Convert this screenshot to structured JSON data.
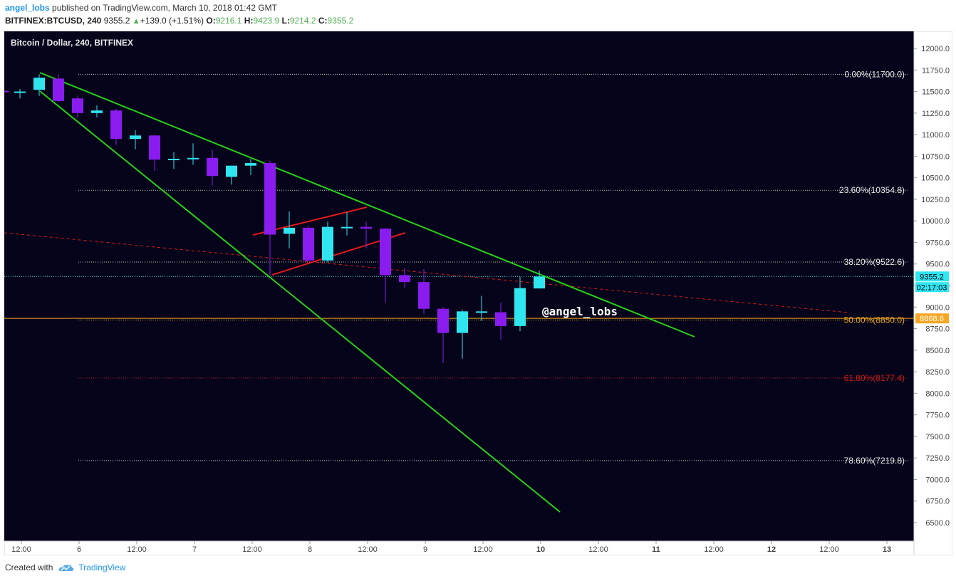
{
  "header": {
    "author": "angel_lobs",
    "published_text": " published on TradingView.com, March 10, 2018 01:42 GMT",
    "symbol": "BITFINEX:BTCUSD, 240",
    "last": "9355.2",
    "change": "+139.0 (+1.51%)",
    "o_label": "O:",
    "o_value": "9216.1",
    "h_label": "H:",
    "h_value": "9423.9",
    "l_label": "L:",
    "l_value": "9214.2",
    "c_label": "C:",
    "c_value": "9355.2"
  },
  "footer": {
    "created_with": "Created with",
    "brand": "TradingView"
  },
  "colors": {
    "background": "#05041a",
    "up": "#2fe6f0",
    "down": "#8a1cf0",
    "trendline": "#27d11a",
    "channel": "#e01a1a",
    "fib": "#c8c8c8",
    "fib50": "#e6a817",
    "fib618": "#cc1b1b",
    "price_tag": "#2fe6f0",
    "orange_tag": "#f5a623"
  },
  "chart_data": {
    "type": "candlestick",
    "title": "Bitcoin / Dollar, 240, BITFINEX",
    "ylim": [
      6250,
      12250
    ],
    "yticks": [
      "12000.0",
      "11750.0",
      "11500.0",
      "11250.0",
      "11000.0",
      "10750.0",
      "10500.0",
      "10250.0",
      "10000.0",
      "9750.0",
      "9500.0",
      "9250.0",
      "9000.0",
      "8750.0",
      "8500.0",
      "8250.0",
      "8000.0",
      "7750.0",
      "7500.0",
      "7250.0",
      "7000.0",
      "6750.0",
      "6500.0"
    ],
    "xticks": [
      "12:00",
      "6",
      "12:00",
      "7",
      "12:00",
      "8",
      "12:00",
      "9",
      "12:00",
      "10",
      "12:00",
      "11",
      "12:00",
      "12",
      "12:00",
      "13"
    ],
    "candles": [
      {
        "o": 11500,
        "h": 11530,
        "l": 11420,
        "c": 11500
      },
      {
        "o": 11520,
        "h": 11700,
        "l": 11450,
        "c": 11660
      },
      {
        "o": 11650,
        "h": 11700,
        "l": 11380,
        "c": 11390
      },
      {
        "o": 11420,
        "h": 11450,
        "l": 11200,
        "c": 11250
      },
      {
        "o": 11250,
        "h": 11340,
        "l": 11200,
        "c": 11280
      },
      {
        "o": 11280,
        "h": 11300,
        "l": 10880,
        "c": 10950
      },
      {
        "o": 10950,
        "h": 11050,
        "l": 10830,
        "c": 10990
      },
      {
        "o": 10990,
        "h": 11000,
        "l": 10580,
        "c": 10710
      },
      {
        "o": 10710,
        "h": 10800,
        "l": 10600,
        "c": 10720
      },
      {
        "o": 10720,
        "h": 10900,
        "l": 10650,
        "c": 10730
      },
      {
        "o": 10730,
        "h": 10820,
        "l": 10410,
        "c": 10520
      },
      {
        "o": 10510,
        "h": 10640,
        "l": 10420,
        "c": 10640
      },
      {
        "o": 10640,
        "h": 10720,
        "l": 10530,
        "c": 10670
      },
      {
        "o": 10670,
        "h": 10700,
        "l": 9370,
        "c": 9840
      },
      {
        "o": 9850,
        "h": 10110,
        "l": 9680,
        "c": 9920
      },
      {
        "o": 9920,
        "h": 9940,
        "l": 9530,
        "c": 9540
      },
      {
        "o": 9540,
        "h": 9990,
        "l": 9520,
        "c": 9930
      },
      {
        "o": 9930,
        "h": 10100,
        "l": 9830,
        "c": 9930
      },
      {
        "o": 9930,
        "h": 9990,
        "l": 9680,
        "c": 9910
      },
      {
        "o": 9910,
        "h": 9920,
        "l": 9050,
        "c": 9370
      },
      {
        "o": 9370,
        "h": 9450,
        "l": 9220,
        "c": 9290
      },
      {
        "o": 9290,
        "h": 9440,
        "l": 8920,
        "c": 8980
      },
      {
        "o": 8980,
        "h": 9000,
        "l": 8350,
        "c": 8700
      },
      {
        "o": 8700,
        "h": 8970,
        "l": 8400,
        "c": 8950
      },
      {
        "o": 8950,
        "h": 9130,
        "l": 8840,
        "c": 8950
      },
      {
        "o": 8940,
        "h": 9050,
        "l": 8620,
        "c": 8780
      },
      {
        "o": 8780,
        "h": 9350,
        "l": 8720,
        "c": 9220
      },
      {
        "o": 9216.1,
        "h": 9423.9,
        "l": 9214.2,
        "c": 9355.2
      }
    ],
    "fib_levels": [
      {
        "label": "0.00%(11700.0)",
        "value": 11700,
        "kind": "normal"
      },
      {
        "label": "23.60%(10354.8)",
        "value": 10354.8,
        "kind": "normal"
      },
      {
        "label": "38.20%(9522.6)",
        "value": 9522.6,
        "kind": "normal"
      },
      {
        "label": "50.00%(8850.0)",
        "value": 8850,
        "kind": "fifty"
      },
      {
        "label": "61.80%(8177.4)",
        "value": 8177.4,
        "kind": "red"
      },
      {
        "label": "78.60%(7219.8)",
        "value": 7219.8,
        "kind": "normal"
      }
    ],
    "price_tag": {
      "value": 9355.2,
      "label": "9355.2",
      "countdown": "02:17:03"
    },
    "orange_tag": {
      "value": 8868.6,
      "label": "8868.6"
    },
    "annotation": "@angel_lobs"
  }
}
